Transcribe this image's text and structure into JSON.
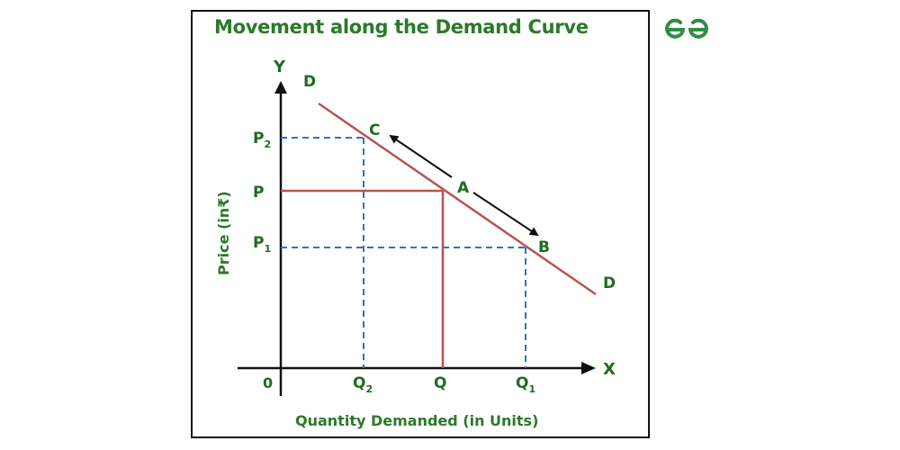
{
  "title": "Movement along the Demand Curve",
  "logo": {
    "icon": "geeksforgeeks-logo-icon",
    "color": "#2f8d46"
  },
  "colors": {
    "curve": "#b85450",
    "guide": "#2e75b6",
    "axis": "#111111",
    "label": "#1f6b1f",
    "title": "#2a7a2a"
  },
  "axes": {
    "y_label": "Y",
    "x_label": "X",
    "origin": "0",
    "y_title": "Price (in₹)",
    "x_title": "Quantity Demanded (in Units)"
  },
  "curve": {
    "start_label": "D",
    "end_label": "D"
  },
  "points": {
    "c": {
      "name": "C",
      "price": "P",
      "price_sub": "2",
      "qty": "Q",
      "qty_sub": "2"
    },
    "a": {
      "name": "A",
      "price": "P",
      "qty": "Q"
    },
    "b": {
      "name": "B",
      "price": "P",
      "price_sub": "1",
      "qty": "Q",
      "qty_sub": "1"
    }
  }
}
